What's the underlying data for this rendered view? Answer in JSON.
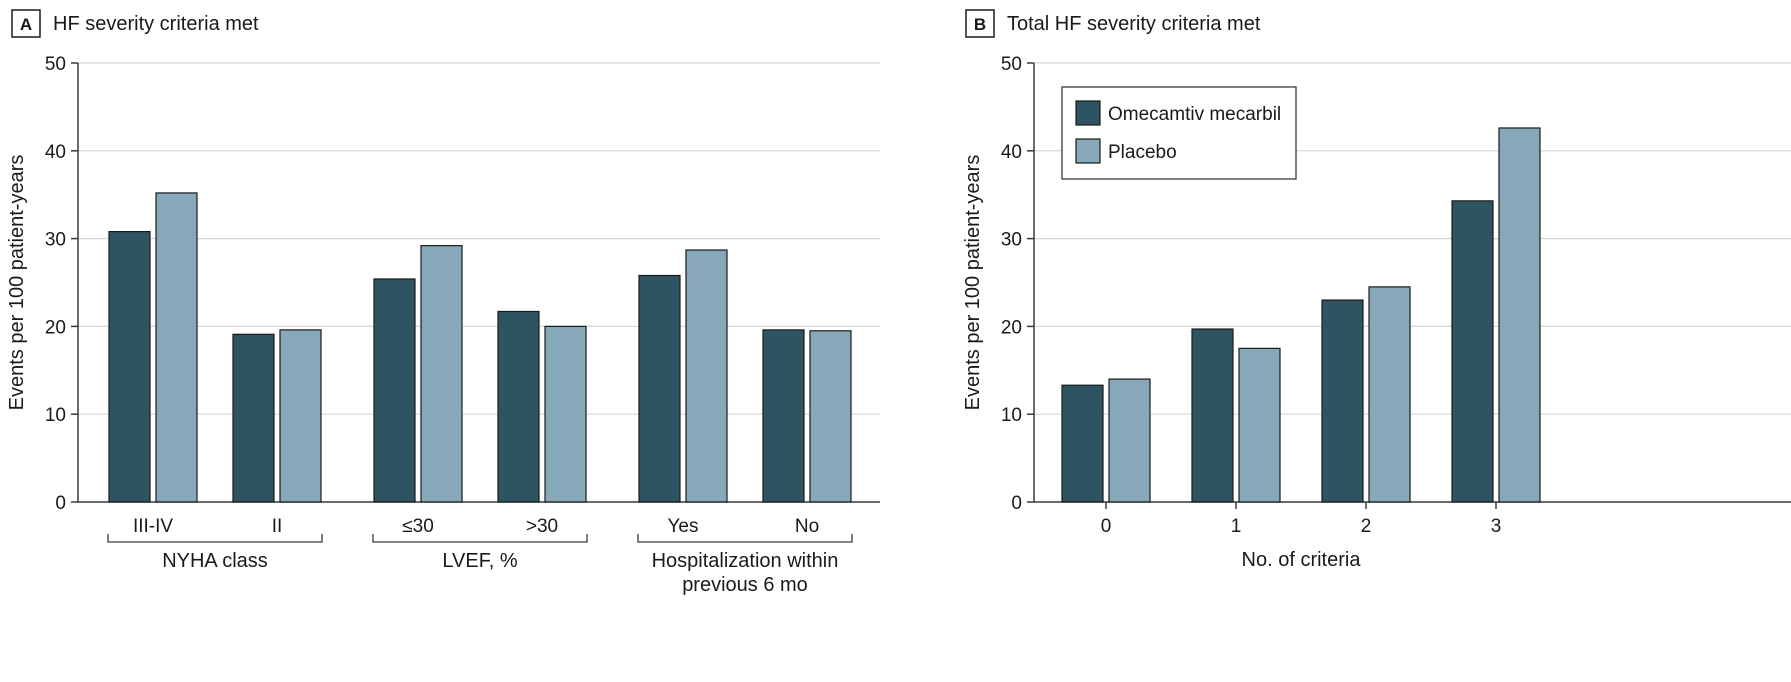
{
  "colors": {
    "omecamtiv": "#2e5462",
    "placebo": "#86a8b8"
  },
  "chart_data": [
    {
      "panel_letter": "A",
      "title": "HF severity criteria met",
      "type": "bar",
      "ylabel": "Events per 100 patient-years",
      "ylim": [
        0,
        50
      ],
      "yticks": [
        "0",
        "10",
        "20",
        "30",
        "40",
        "50"
      ],
      "grid": true,
      "categories": [
        "III-IV",
        "II",
        "≤30",
        ">30",
        "Yes",
        "No"
      ],
      "groups": [
        {
          "label": [
            "NYHA class"
          ],
          "categories": [
            "III-IV",
            "II"
          ]
        },
        {
          "label": [
            "LVEF, %"
          ],
          "categories": [
            "≤30",
            ">30"
          ]
        },
        {
          "label": [
            "Hospitalization within",
            "previous 6 mo"
          ],
          "categories": [
            "Yes",
            "No"
          ]
        }
      ],
      "series": [
        {
          "name": "Omecamtiv mecarbil",
          "values": [
            30.8,
            19.1,
            25.4,
            21.7,
            25.8,
            19.6
          ]
        },
        {
          "name": "Placebo",
          "values": [
            35.2,
            19.6,
            29.2,
            20.0,
            28.7,
            19.5
          ]
        }
      ]
    },
    {
      "panel_letter": "B",
      "title": "Total HF severity criteria met",
      "type": "bar",
      "ylabel": "Events per 100 patient-years",
      "xlabel": "No. of criteria",
      "ylim": [
        0,
        50
      ],
      "yticks": [
        "0",
        "10",
        "20",
        "30",
        "40",
        "50"
      ],
      "grid": true,
      "legend_position": "top-left",
      "categories": [
        "0",
        "1",
        "2",
        "3"
      ],
      "series": [
        {
          "name": "Omecamtiv mecarbil",
          "values": [
            13.3,
            19.7,
            23.0,
            34.3
          ]
        },
        {
          "name": "Placebo",
          "values": [
            14.0,
            17.5,
            24.5,
            42.6
          ]
        }
      ]
    }
  ]
}
